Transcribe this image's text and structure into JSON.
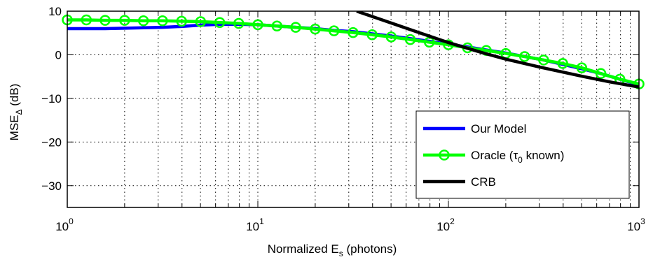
{
  "chart_data": {
    "type": "line",
    "xscale": "log",
    "xlim": [
      1,
      1000
    ],
    "ylim": [
      -35,
      10
    ],
    "grid": true,
    "legend_position": "lower-right",
    "xlabel": {
      "main": "Normalized E",
      "sub": "s",
      "suffix": " (photons)"
    },
    "ylabel": {
      "main": "MSE",
      "sub": "Δ",
      "suffix": " (dB)"
    },
    "x_ticks": [
      {
        "value": 1,
        "base": "10",
        "exp": "0"
      },
      {
        "value": 10,
        "base": "10",
        "exp": "1"
      },
      {
        "value": 100,
        "base": "10",
        "exp": "2"
      },
      {
        "value": 1000,
        "base": "10",
        "exp": "3"
      }
    ],
    "y_ticks": [
      {
        "value": 10,
        "label": "10"
      },
      {
        "value": 0,
        "label": "0"
      },
      {
        "value": -10,
        "label": "−10"
      },
      {
        "value": -20,
        "label": "−20"
      },
      {
        "value": -30,
        "label": "−30"
      }
    ],
    "series": [
      {
        "name": "Our Model",
        "color": "#0000ff",
        "marker": "none",
        "x": [
          1,
          1.26,
          1.58,
          2,
          2.51,
          3.16,
          3.98,
          5.01,
          6.31,
          7.94,
          10,
          12.6,
          15.8,
          20,
          25.1,
          31.6,
          39.8,
          50.1,
          63.1,
          79.4,
          100,
          126,
          158,
          200,
          251,
          316,
          398,
          501,
          631,
          794,
          1000
        ],
        "y": [
          6.0,
          6.0,
          6.0,
          6.1,
          6.2,
          6.3,
          6.5,
          6.8,
          7.0,
          7.0,
          6.9,
          6.6,
          6.3,
          6.0,
          5.6,
          5.3,
          4.8,
          4.3,
          3.7,
          3.1,
          2.4,
          1.8,
          1.1,
          0.4,
          -0.4,
          -1.2,
          -2.2,
          -3.2,
          -4.3,
          -5.6,
          -6.9
        ]
      },
      {
        "name": "Oracle (τ",
        "name_sub": "0",
        "name_suffix": " known)",
        "color": "#00ff00",
        "marker": "o",
        "x": [
          1,
          1.26,
          1.58,
          2,
          2.51,
          3.16,
          3.98,
          5.01,
          6.31,
          7.94,
          10,
          12.6,
          15.8,
          20,
          25.1,
          31.6,
          39.8,
          50.1,
          63.1,
          79.4,
          100,
          126,
          158,
          200,
          251,
          316,
          398,
          501,
          631,
          794,
          1000
        ],
        "y": [
          8.0,
          8.0,
          7.9,
          7.9,
          7.8,
          7.8,
          7.7,
          7.6,
          7.4,
          7.2,
          6.9,
          6.6,
          6.3,
          5.9,
          5.5,
          5.1,
          4.6,
          4.1,
          3.5,
          2.9,
          2.3,
          1.6,
          1.0,
          0.3,
          -0.4,
          -1.2,
          -2.0,
          -3.0,
          -4.3,
          -5.6,
          -6.7
        ]
      },
      {
        "name": "CRB",
        "color": "#000000",
        "marker": "none",
        "x": [
          33,
          50,
          70,
          100,
          150,
          200,
          300,
          500,
          700,
          1000
        ],
        "y": [
          10.0,
          7.3,
          5.1,
          2.8,
          0.5,
          -1.0,
          -2.8,
          -4.9,
          -6.2,
          -7.4
        ]
      }
    ]
  }
}
